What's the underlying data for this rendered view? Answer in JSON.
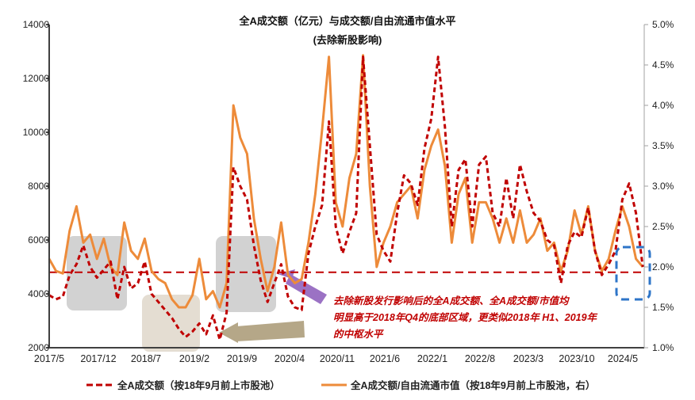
{
  "chart_data": {
    "type": "line",
    "title": "全A成交额（亿元）与成交额/自由流通市值水平",
    "subtitle": "(去除新股影响)",
    "xlabel": "",
    "ylabel_left": "",
    "ylabel_right": "",
    "x_ticks": [
      "2017/5",
      "2017/12",
      "2018/7",
      "2019/2",
      "2019/9",
      "2020/4",
      "2020/11",
      "2021/6",
      "2022/1",
      "2022/8",
      "2023/3",
      "2023/10",
      "2024/5"
    ],
    "y_left_ticks": [
      "14000",
      "12000",
      "10000",
      "8000",
      "6000",
      "4000",
      "2000"
    ],
    "y_right_ticks": [
      "5.0%",
      "4.5%",
      "4.0%",
      "3.5%",
      "3.0%",
      "2.5%",
      "2.0%",
      "1.5%",
      "1.0%"
    ],
    "ylim_left": [
      2000,
      14000
    ],
    "ylim_right": [
      1.0,
      5.0
    ],
    "grid": false,
    "legend_position": "bottom",
    "reference_line": {
      "axis": "left",
      "value": 4800,
      "style": "dashed",
      "color": "#c00000"
    },
    "series": [
      {
        "name": "全A成交额（按18年9月前上市股池）",
        "axis": "left",
        "style": "dashed",
        "color": "#c00000",
        "x_month_index": [
          0,
          1,
          2,
          3,
          4,
          5,
          6,
          7,
          8,
          9,
          10,
          11,
          12,
          13,
          14,
          15,
          16,
          17,
          18,
          19,
          20,
          21,
          22,
          23,
          24,
          25,
          26,
          27,
          28,
          29,
          30,
          31,
          32,
          33,
          34,
          35,
          36,
          37,
          38,
          39,
          40,
          41,
          42,
          43,
          44,
          45,
          46,
          47,
          48,
          49,
          50,
          51,
          52,
          53,
          54,
          55,
          56,
          57,
          58,
          59,
          60,
          61,
          62,
          63,
          64,
          65,
          66,
          67,
          68,
          69,
          70,
          71,
          72,
          73,
          74,
          75,
          76,
          77,
          78,
          79,
          80,
          81,
          82,
          83,
          84,
          85,
          86,
          87
        ],
        "values": [
          3950,
          3800,
          3900,
          4700,
          5100,
          5800,
          5000,
          4600,
          4900,
          5200,
          3800,
          5000,
          4200,
          4400,
          5200,
          4000,
          3700,
          3400,
          3100,
          2700,
          2400,
          2600,
          2900,
          2500,
          3200,
          2300,
          3300,
          8700,
          8000,
          7500,
          5800,
          4500,
          3700,
          4400,
          5100,
          3900,
          3500,
          3400,
          5500,
          6500,
          7300,
          10400,
          6500,
          5500,
          6300,
          7000,
          12800,
          9500,
          6200,
          5600,
          5200,
          7000,
          8400,
          8100,
          7300,
          9400,
          10500,
          12800,
          10200,
          6500,
          8600,
          9000,
          6500,
          8800,
          9100,
          7000,
          6500,
          8300,
          6800,
          8800,
          7800,
          7000,
          6700,
          6000,
          5800,
          4400,
          5800,
          6300,
          6100,
          7200,
          5600,
          4700,
          5100,
          5600,
          7500,
          8100,
          7000,
          5000
        ],
        "approx": true
      },
      {
        "name": "全A成交额/自由流通市值（按18年9月前上市股池，右）",
        "axis": "right",
        "style": "solid",
        "color": "#ed8b3a",
        "x_month_index": [
          0,
          1,
          2,
          3,
          4,
          5,
          6,
          7,
          8,
          9,
          10,
          11,
          12,
          13,
          14,
          15,
          16,
          17,
          18,
          19,
          20,
          21,
          22,
          23,
          24,
          25,
          26,
          27,
          28,
          29,
          30,
          31,
          32,
          33,
          34,
          35,
          36,
          37,
          38,
          39,
          40,
          41,
          42,
          43,
          44,
          45,
          46,
          47,
          48,
          49,
          50,
          51,
          52,
          53,
          54,
          55,
          56,
          57,
          58,
          59,
          60,
          61,
          62,
          63,
          64,
          65,
          66,
          67,
          68,
          69,
          70,
          71,
          72,
          73,
          74,
          75,
          76,
          77,
          78,
          79,
          80,
          81,
          82,
          83,
          84,
          85,
          86,
          87
        ],
        "values": [
          2.1,
          1.95,
          1.92,
          2.45,
          2.75,
          2.3,
          2.4,
          2.1,
          2.35,
          2.0,
          1.9,
          2.55,
          2.2,
          2.1,
          2.35,
          1.95,
          1.85,
          1.8,
          1.6,
          1.5,
          1.5,
          1.65,
          2.1,
          1.6,
          1.7,
          1.5,
          1.8,
          4.0,
          3.6,
          3.4,
          2.6,
          2.1,
          1.7,
          2.0,
          2.55,
          1.9,
          1.8,
          1.85,
          2.3,
          2.9,
          3.7,
          4.6,
          2.8,
          2.5,
          3.1,
          3.4,
          4.62,
          3.0,
          2.0,
          2.3,
          2.5,
          2.8,
          2.9,
          3.0,
          2.6,
          3.2,
          3.5,
          3.7,
          3.25,
          2.3,
          2.9,
          3.1,
          2.3,
          2.8,
          2.8,
          2.6,
          2.3,
          2.6,
          2.3,
          2.7,
          2.3,
          2.4,
          2.6,
          2.2,
          2.3,
          1.95,
          2.2,
          2.7,
          2.4,
          2.75,
          2.2,
          1.95,
          2.1,
          2.45,
          2.75,
          2.5,
          2.1,
          2.0
        ],
        "approx": true
      }
    ]
  },
  "header": {
    "title": "全A成交额（亿元）与成交额/自由流通市值水平",
    "subtitle": "(去除新股影响)"
  },
  "legend": {
    "item1": "全A成交额（按18年9月前上市股池）",
    "item2": "全A成交额/自由流通市值（按18年9月前上市股池，右）"
  },
  "annotation": {
    "line1": "去除新股发行影响后的全A成交额、全A成交额/市值均",
    "line2": "明显高于2018年Q4的底部区域，更类似2018年 H1、2019年",
    "line3": "的中枢水平"
  },
  "colors": {
    "series_dashed": "#c00000",
    "series_solid": "#ed8b3a",
    "highlight_gray": "#a6a6a6",
    "highlight_beige": "#d9cfbf",
    "arrow_purple": "#9b72c4",
    "arrow_tan": "#b5a788",
    "box_blue": "#2e75c8"
  }
}
